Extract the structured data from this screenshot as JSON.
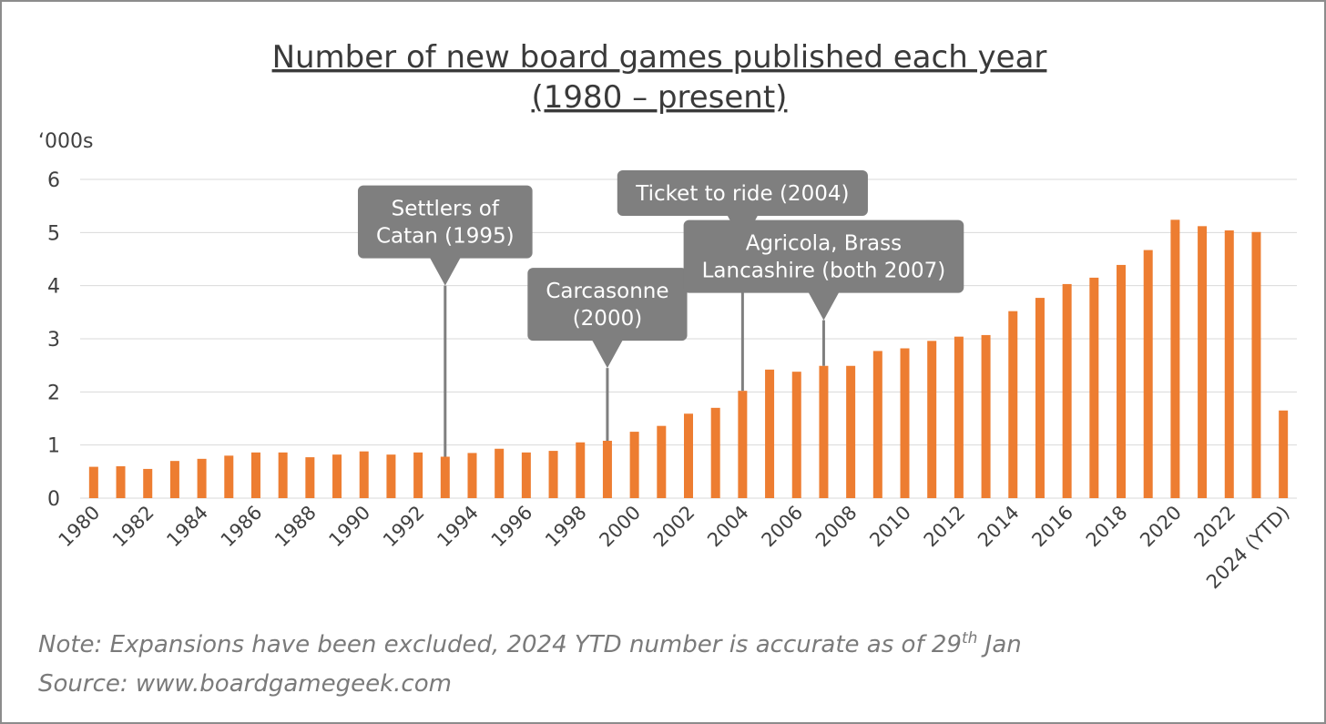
{
  "chart_data": {
    "type": "bar",
    "title": "Number of new board games published each year",
    "subtitle": "(1980 – present)",
    "unit_label": "‘000s",
    "ylim": [
      0,
      6
    ],
    "yticks": [
      "0",
      "1",
      "2",
      "3",
      "4",
      "5",
      "6"
    ],
    "grid": true,
    "bar_color": "#ed7d31",
    "categories": [
      "1980",
      "1981",
      "1982",
      "1983",
      "1984",
      "1985",
      "1986",
      "1987",
      "1988",
      "1989",
      "1990",
      "1991",
      "1992",
      "1993",
      "1994",
      "1995",
      "1996",
      "1997",
      "1998",
      "1999",
      "2000",
      "2001",
      "2002",
      "2003",
      "2004",
      "2005",
      "2006",
      "2007",
      "2008",
      "2009",
      "2010",
      "2011",
      "2012",
      "2013",
      "2014",
      "2015",
      "2016",
      "2017",
      "2018",
      "2019",
      "2020",
      "2021",
      "2022",
      "2023",
      "2024 (YTD)"
    ],
    "tick_labels": [
      "1980",
      "1982",
      "1984",
      "1986",
      "1988",
      "1990",
      "1992",
      "1994",
      "1996",
      "1998",
      "2000",
      "2002",
      "2004",
      "2006",
      "2008",
      "2010",
      "2012",
      "2014",
      "2016",
      "2018",
      "2020",
      "2022",
      "2024 (YTD)"
    ],
    "values": [
      0.59,
      0.6,
      0.55,
      0.7,
      0.74,
      0.8,
      0.86,
      0.86,
      0.77,
      0.82,
      0.88,
      0.82,
      0.86,
      0.78,
      0.85,
      0.93,
      0.86,
      0.89,
      1.05,
      1.08,
      1.25,
      1.36,
      1.59,
      1.7,
      2.02,
      2.42,
      2.38,
      2.49,
      2.49,
      2.77,
      2.82,
      2.96,
      3.04,
      3.07,
      3.52,
      3.77,
      4.03,
      4.15,
      4.39,
      4.67,
      5.24,
      5.12,
      5.04,
      5.01,
      1.65
    ],
    "annotations": [
      {
        "lines": [
          "Settlers of",
          "Catan (1995)"
        ],
        "category_index": 13,
        "value": 4.0
      },
      {
        "lines": [
          "Carcasonne",
          "(2000)"
        ],
        "category_index": 19,
        "value": 2.45
      },
      {
        "lines": [
          "Ticket to ride (2004)"
        ],
        "category_index": 24,
        "value": 4.8
      },
      {
        "lines": [
          "Agricola, Brass",
          "Lancashire (both 2007)"
        ],
        "category_index": 27,
        "value": 3.35
      }
    ]
  },
  "note": {
    "prefix": "Note: Expansions have been excluded, 2024 YTD number is accurate as of 29",
    "superscript": "th",
    "suffix": " Jan",
    "source": "Source: www.boardgamegeek.com"
  }
}
